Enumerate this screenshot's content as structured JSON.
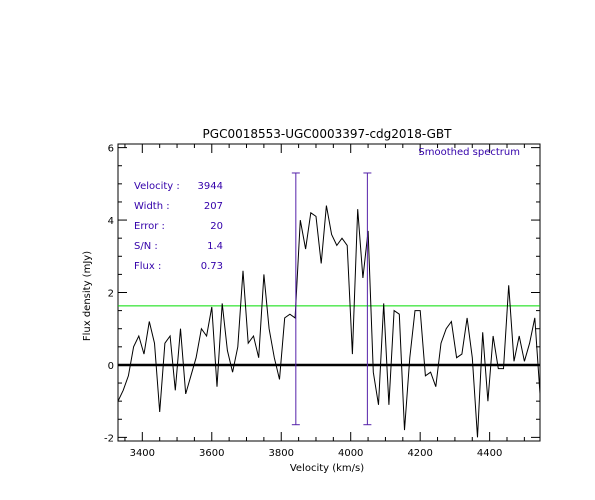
{
  "chart_data": {
    "type": "line",
    "title": "PGC0018553-UGC0003397-cdg2018-GBT",
    "xlabel": "Velocity (km/s)",
    "ylabel": "Flux density (mJy)",
    "xlim": [
      3330,
      4545
    ],
    "ylim": [
      -2.1,
      6.1
    ],
    "xticks": [
      3400,
      3600,
      3800,
      4000,
      4200,
      4400
    ],
    "yticks": [
      -2,
      0,
      2,
      4,
      6
    ],
    "legend_label": "Smoothed spectrum",
    "stats": [
      {
        "label": "Velocity :",
        "value": "3944"
      },
      {
        "label": "Width :",
        "value": "207"
      },
      {
        "label": "Error :",
        "value": "20"
      },
      {
        "label": "S/N :",
        "value": "1.4"
      },
      {
        "label": "Flux :",
        "value": "0.73"
      }
    ],
    "zero_line": 0,
    "threshold_line": 1.63,
    "velocity_markers": [
      3842,
      4048
    ],
    "marker_range": [
      -1.65,
      5.3
    ],
    "colors": {
      "spectrum": "#000000",
      "threshold": "#00dd00",
      "markers": "#5522aa",
      "annotation_text": "#3300aa"
    },
    "x": [
      3330,
      3345,
      3360,
      3375,
      3390,
      3405,
      3420,
      3435,
      3450,
      3465,
      3480,
      3495,
      3510,
      3525,
      3540,
      3555,
      3570,
      3585,
      3600,
      3615,
      3630,
      3645,
      3660,
      3675,
      3690,
      3705,
      3720,
      3735,
      3750,
      3765,
      3780,
      3795,
      3810,
      3825,
      3840,
      3855,
      3870,
      3885,
      3900,
      3915,
      3930,
      3945,
      3960,
      3975,
      3990,
      4005,
      4020,
      4035,
      4050,
      4065,
      4080,
      4095,
      4110,
      4125,
      4140,
      4155,
      4170,
      4185,
      4200,
      4215,
      4230,
      4245,
      4260,
      4275,
      4290,
      4305,
      4320,
      4335,
      4350,
      4365,
      4380,
      4395,
      4410,
      4425,
      4440,
      4455,
      4470,
      4485,
      4500,
      4515,
      4530,
      4545
    ],
    "y": [
      -1.0,
      -0.7,
      -0.3,
      0.5,
      0.8,
      0.3,
      1.2,
      0.6,
      -1.3,
      0.6,
      0.8,
      -0.7,
      1.0,
      -0.8,
      -0.3,
      0.2,
      1.0,
      0.8,
      1.6,
      -0.6,
      1.7,
      0.4,
      -0.2,
      0.5,
      2.6,
      0.6,
      0.8,
      0.2,
      2.5,
      1.0,
      0.2,
      -0.4,
      1.3,
      1.4,
      1.3,
      4.0,
      3.2,
      4.2,
      4.1,
      2.8,
      4.4,
      3.6,
      3.3,
      3.5,
      3.3,
      0.3,
      4.3,
      2.4,
      3.7,
      -0.2,
      -1.1,
      1.7,
      -1.1,
      1.5,
      1.4,
      -1.8,
      0.2,
      1.5,
      1.5,
      -0.3,
      -0.2,
      -0.6,
      0.6,
      1.0,
      1.2,
      0.2,
      0.3,
      1.3,
      0.2,
      -2.0,
      0.9,
      -1.0,
      0.8,
      -0.1,
      -0.1,
      2.2,
      0.1,
      0.8,
      0.1,
      0.6,
      1.3,
      -0.8
    ]
  }
}
